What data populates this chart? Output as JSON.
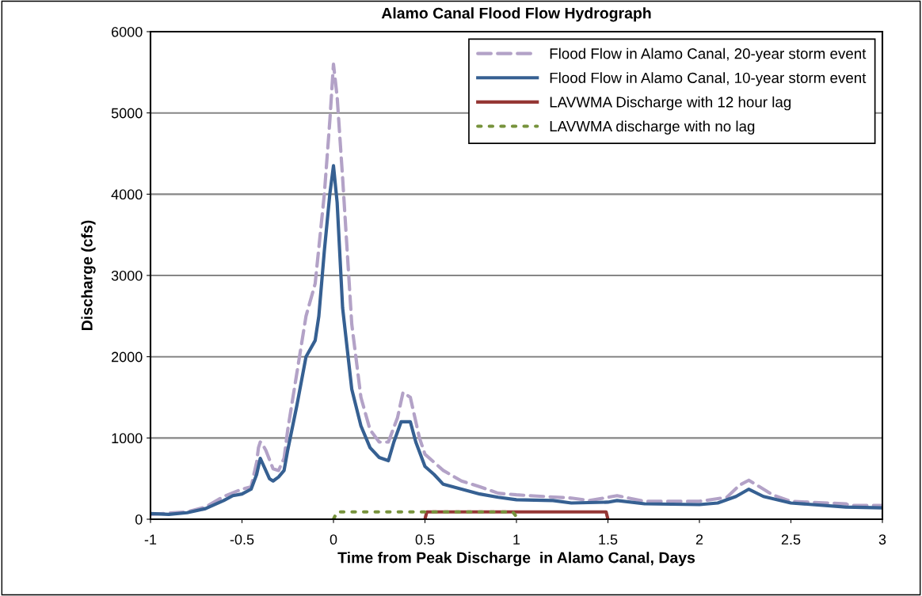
{
  "chart_data": {
    "type": "line",
    "title": "Alamo Canal Flood Flow Hydrograph",
    "xlabel": "Time from Peak Discharge  in Alamo Canal, Days",
    "ylabel": "Discharge (cfs)",
    "xlim": [
      -1,
      3
    ],
    "xticks": [
      -1,
      -0.5,
      0,
      0.5,
      1,
      1.5,
      2,
      2.5,
      3
    ],
    "ylim": [
      0,
      6000
    ],
    "yticks": [
      0,
      1000,
      2000,
      3000,
      4000,
      5000,
      6000
    ],
    "grid": "y",
    "legend": "top right",
    "series": [
      {
        "name": "Flood Flow in Alamo Canal, 20-year storm event",
        "color": "#b3a2c7",
        "line_style": "dashed",
        "x": [
          -1,
          -0.8,
          -0.7,
          -0.6,
          -0.5,
          -0.45,
          -0.42,
          -0.41,
          -0.4,
          -0.39,
          -0.37,
          -0.33,
          -0.3,
          -0.27,
          -0.25,
          -0.2,
          -0.15,
          -0.1,
          -0.05,
          -0.02,
          0,
          0.02,
          0.05,
          0.1,
          0.15,
          0.2,
          0.25,
          0.3,
          0.35,
          0.38,
          0.42,
          0.47,
          0.5,
          0.6,
          0.7,
          0.8,
          0.9,
          1.0,
          1.3,
          1.4,
          1.55,
          1.7,
          2.0,
          2.15,
          2.22,
          2.27,
          2.4,
          2.5,
          2.8,
          2.82,
          3.0
        ],
        "values": [
          60,
          90,
          150,
          280,
          370,
          400,
          700,
          880,
          950,
          930,
          850,
          620,
          600,
          750,
          1100,
          1800,
          2500,
          2900,
          4000,
          4900,
          5600,
          5200,
          4200,
          2400,
          1500,
          1100,
          950,
          950,
          1250,
          1560,
          1500,
          1000,
          800,
          600,
          470,
          400,
          320,
          300,
          260,
          230,
          290,
          220,
          220,
          270,
          420,
          480,
          300,
          220,
          190,
          170,
          170
        ]
      },
      {
        "name": "Flood Flow in Alamo Canal, 10-year storm event",
        "color": "#366092",
        "line_style": "solid",
        "x": [
          -1,
          -0.9,
          -0.8,
          -0.7,
          -0.6,
          -0.55,
          -0.5,
          -0.45,
          -0.42,
          -0.4,
          -0.35,
          -0.33,
          -0.3,
          -0.27,
          -0.25,
          -0.2,
          -0.15,
          -0.1,
          -0.08,
          -0.05,
          -0.02,
          0,
          0.02,
          0.05,
          0.1,
          0.15,
          0.2,
          0.25,
          0.3,
          0.33,
          0.37,
          0.42,
          0.45,
          0.5,
          0.55,
          0.6,
          0.7,
          0.8,
          0.9,
          1.0,
          1.2,
          1.3,
          1.5,
          1.55,
          1.7,
          2.0,
          2.1,
          2.2,
          2.27,
          2.35,
          2.5,
          2.8,
          3.0
        ],
        "values": [
          70,
          60,
          80,
          130,
          230,
          290,
          310,
          370,
          550,
          750,
          500,
          470,
          520,
          600,
          850,
          1400,
          2000,
          2200,
          2500,
          3300,
          4000,
          4350,
          3900,
          2600,
          1600,
          1150,
          880,
          760,
          720,
          950,
          1200,
          1200,
          950,
          650,
          550,
          430,
          370,
          310,
          270,
          240,
          230,
          200,
          210,
          230,
          190,
          180,
          200,
          280,
          370,
          280,
          200,
          150,
          140
        ]
      },
      {
        "name": "LAVWMA Discharge with 12 hour lag",
        "color": "#953735",
        "line_style": "solid",
        "x": [
          0.5,
          0.51,
          1.49,
          1.5
        ],
        "values": [
          0,
          90,
          90,
          0
        ]
      },
      {
        "name": "LAVWMA discharge with no lag",
        "color": "#77933c",
        "line_style": "dotted",
        "x": [
          0,
          0.02,
          0.98,
          1.0
        ],
        "values": [
          0,
          90,
          90,
          30
        ]
      }
    ]
  }
}
